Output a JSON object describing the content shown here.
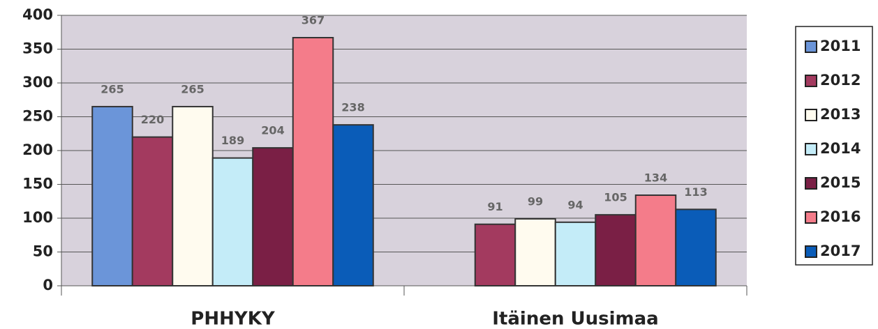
{
  "chart_data": {
    "type": "bar",
    "categories": [
      "PHHYKY",
      "Itäinen Uusimaa"
    ],
    "series": [
      {
        "name": "2011",
        "color": "#6b95d9",
        "values": [
          265,
          null
        ]
      },
      {
        "name": "2012",
        "color": "#a33a5f",
        "values": [
          220,
          91
        ]
      },
      {
        "name": "2013",
        "color": "#fffbef",
        "values": [
          265,
          99
        ]
      },
      {
        "name": "2014",
        "color": "#c4ecf8",
        "values": [
          189,
          94
        ]
      },
      {
        "name": "2015",
        "color": "#7a1f45",
        "values": [
          204,
          105
        ]
      },
      {
        "name": "2016",
        "color": "#f47c8a",
        "values": [
          367,
          134
        ]
      },
      {
        "name": "2017",
        "color": "#0a5cb8",
        "values": [
          238,
          113
        ]
      }
    ],
    "ylim": [
      0,
      400
    ],
    "yticks": [
      0,
      50,
      100,
      150,
      200,
      250,
      300,
      350,
      400
    ],
    "grid": true,
    "legend": "right"
  }
}
